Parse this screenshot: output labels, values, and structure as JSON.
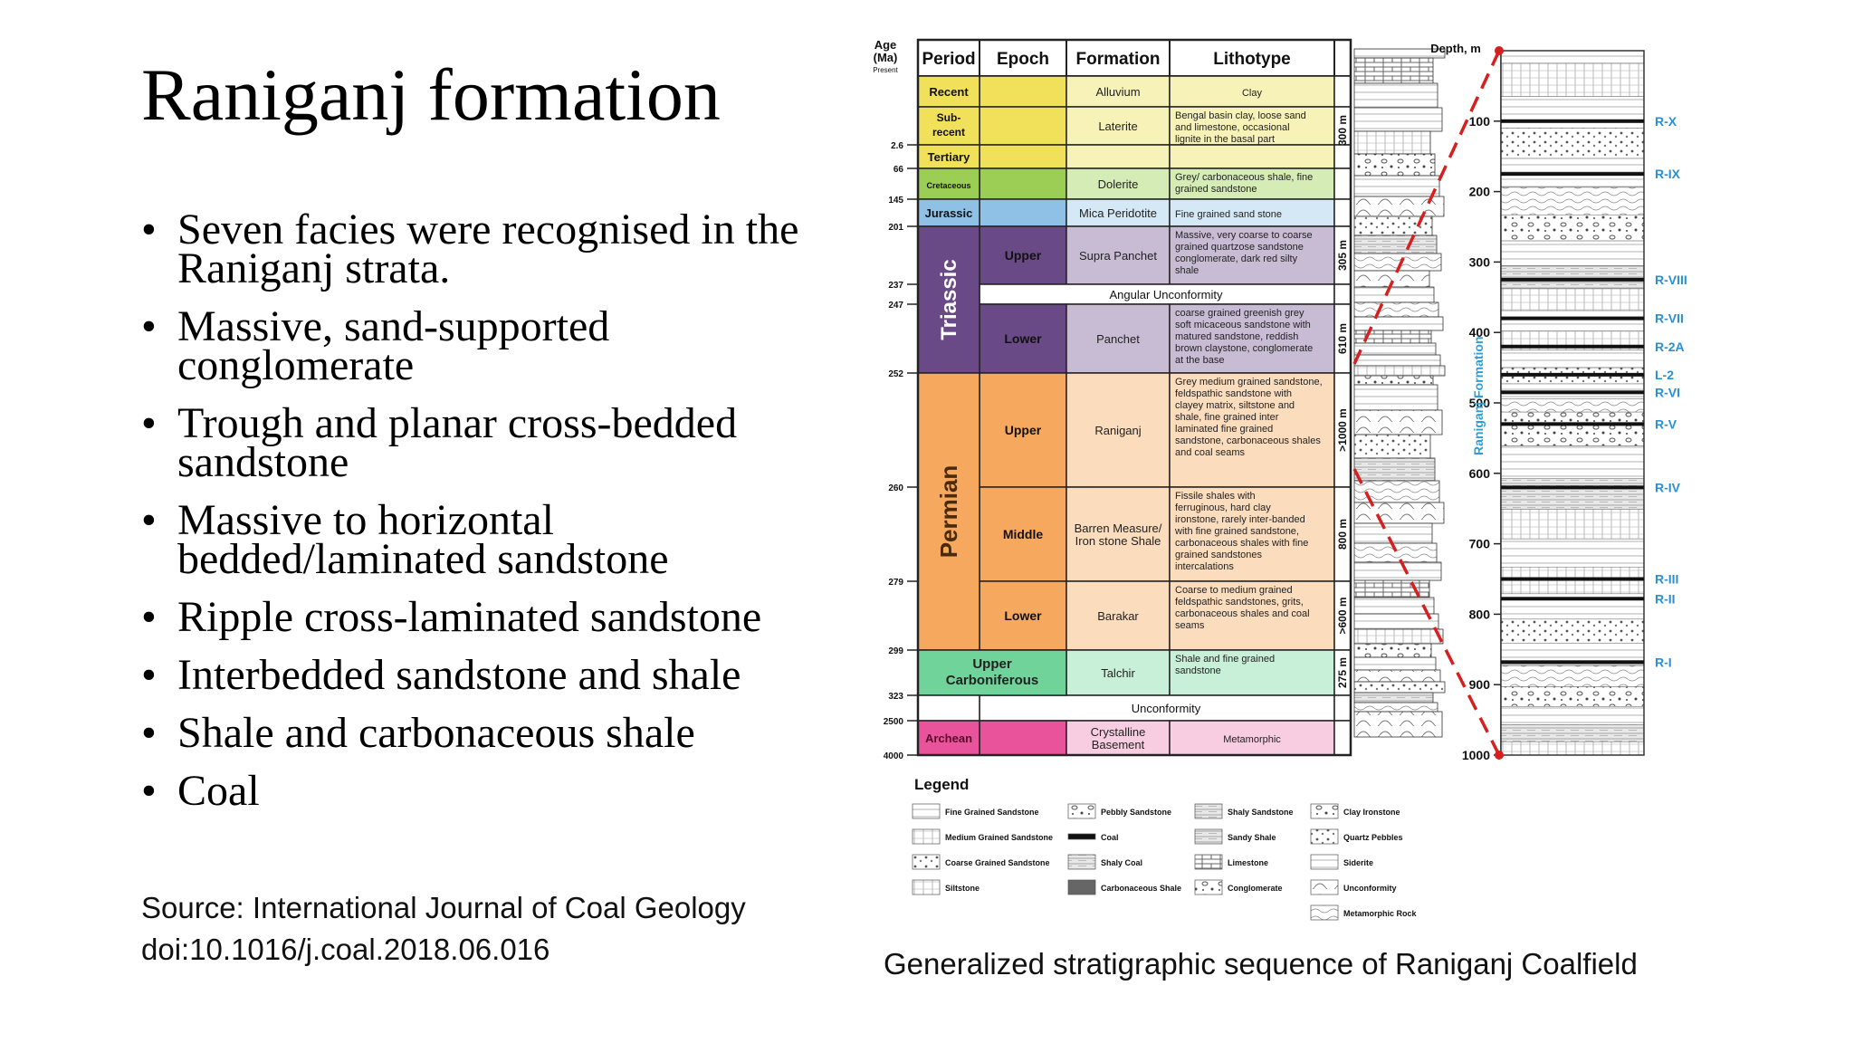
{
  "slide": {
    "title": "Raniganj formation",
    "bullets": [
      "Seven facies were recognised in the Raniganj strata.",
      "Massive, sand-supported conglomerate",
      "Trough and planar cross-bedded sandstone",
      "Massive to horizontal bedded/laminated sandstone",
      "Ripple cross-laminated sandstone",
      "Interbedded sandstone and shale",
      "Shale and carbonaceous shale",
      "Coal"
    ],
    "source_line1": "Source: International Journal of Coal Geology",
    "source_line2": "doi:10.1016/j.coal.2018.06.016",
    "caption": "Generalized stratigraphic sequence of Raniganj Coalfield"
  },
  "figure": {
    "headers": {
      "age": "Age (Ma)",
      "present": "Present",
      "period": "Period",
      "epoch": "Epoch",
      "formation": "Formation",
      "lithotype": "Lithotype",
      "depth": "Depth, m",
      "raniganj_formation": "Raniganj Formation"
    },
    "ages": [
      {
        "label": "2.6",
        "row": 2
      },
      {
        "label": "66",
        "row": 3
      },
      {
        "label": "145",
        "row": 4
      },
      {
        "label": "201",
        "row": 5
      },
      {
        "label": "237",
        "row": 6
      },
      {
        "label": "247",
        "row": 7
      },
      {
        "label": "252",
        "row": 8
      },
      {
        "label": "260",
        "row": 9
      },
      {
        "label": "279",
        "row": 10
      },
      {
        "label": "299",
        "row": 11
      },
      {
        "label": "323",
        "row": 12
      },
      {
        "label": "2500",
        "row": 13
      },
      {
        "label": "4000",
        "row": 14
      }
    ],
    "rows": [
      {
        "period": "Recent",
        "epoch": "",
        "formation": "Alluvium",
        "lithotype": "Clay",
        "color": "#f1e05a",
        "light": "#f7f2b8"
      },
      {
        "period": "Sub-recent",
        "epoch": "",
        "formation": "Laterite",
        "lithotype": "Bengal basin clay, loose sand and limestone, occasional lignite in the basal part",
        "color": "#f1e05a",
        "light": "#f7f2b8"
      },
      {
        "period": "Tertiary",
        "epoch": "",
        "formation": "",
        "lithotype": "",
        "color": "#f1e05a",
        "light": "#f7f2b8"
      },
      {
        "period": "Cretaceous",
        "epoch": "",
        "formation": "Dolerite",
        "lithotype": "Grey/ carbonaceous shale, fine grained sandstone",
        "color": "#9ccd55",
        "light": "#d6ecb7"
      },
      {
        "period": "Jurassic",
        "epoch": "",
        "formation": "Mica Peridotite",
        "lithotype": "Fine grained sand stone",
        "color": "#8fc1e7",
        "light": "#d4e8f6"
      },
      {
        "period": "Triassic",
        "epoch": "Upper",
        "formation": "Supra Panchet",
        "lithotype": "Massive, very coarse to coarse grained quartzose sandstone conglomerate, dark red silty shale",
        "color": "#6a4a86",
        "light": "#c8bcd4",
        "thickness": "305 m"
      },
      {
        "period": "",
        "epoch": "",
        "formation": "Angular Unconformity",
        "lithotype": "",
        "color": "#ffffff",
        "light": "#ffffff"
      },
      {
        "period": "",
        "epoch": "Lower",
        "formation": "Panchet",
        "lithotype": "coarse grained greenish grey soft micaceous sandstone with matured sandstone, reddish brown claystone, conglomerate at the base",
        "color": "#6a4a86",
        "light": "#c8bcd4",
        "thickness": "610 m"
      },
      {
        "period": "Permian",
        "epoch": "Upper",
        "formation": "Raniganj",
        "lithotype": "Grey medium grained sandstone, feldspathic sandstone with clayey matrix, siltstone and shale, fine grained inter laminated fine grained sandstone, carbonaceous shales and coal seams",
        "color": "#f7a85f",
        "light": "#fbdcbd",
        "thickness": ">1000 m"
      },
      {
        "period": "",
        "epoch": "Middle",
        "formation": "Barren Measure/ Iron stone Shale",
        "lithotype": "Fissile shales with ferruginous, hard clay ironstone, rarely inter-banded with fine grained sandstone, carbonaceous shales with fine grained sandstones intercalations",
        "color": "#f7a85f",
        "light": "#fbdcbd",
        "thickness": "800 m"
      },
      {
        "period": "",
        "epoch": "Lower",
        "formation": "Barakar",
        "lithotype": "Coarse to medium grained feldspathic sandstones, grits, carbonaceous shales and coal seams",
        "color": "#f7a85f",
        "light": "#fbdcbd",
        "thickness": ">600 m"
      },
      {
        "period": "Upper Carboniferous",
        "epoch": "",
        "formation": "Talchir",
        "lithotype": "Shale and fine grained sandstone",
        "color": "#6fd39a",
        "light": "#c8efd8",
        "thickness": "275 m"
      },
      {
        "period": "",
        "epoch": "",
        "formation": "Unconformity",
        "lithotype": "",
        "color": "#ffffff",
        "light": "#ffffff"
      },
      {
        "period": "Archean",
        "epoch": "",
        "formation": "Crystalline Basement",
        "lithotype": "Metamorphic",
        "color": "#e8539b",
        "light": "#f8cde2"
      }
    ],
    "top_thickness": "300 m",
    "depths": [
      "100",
      "200",
      "300",
      "400",
      "500",
      "600",
      "700",
      "800",
      "900",
      "1000"
    ],
    "seams": [
      {
        "label": "R-X",
        "depth": 100
      },
      {
        "label": "R-IX",
        "depth": 175
      },
      {
        "label": "R-VIII",
        "depth": 325
      },
      {
        "label": "R-VII",
        "depth": 380
      },
      {
        "label": "R-2A",
        "depth": 420
      },
      {
        "label": "L-2",
        "depth": 460
      },
      {
        "label": "R-VI",
        "depth": 485
      },
      {
        "label": "R-V",
        "depth": 530
      },
      {
        "label": "R-IV",
        "depth": 620
      },
      {
        "label": "R-III",
        "depth": 750
      },
      {
        "label": "R-II",
        "depth": 778
      },
      {
        "label": "R-I",
        "depth": 868
      }
    ],
    "legend_title": "Legend",
    "legend": [
      [
        "Fine Grained Sandstone",
        "Medium Grained Sandstone",
        "Coarse Grained Sandstone",
        "Siltstone"
      ],
      [
        "Pebbly Sandstone",
        "Coal",
        "Shaly Coal",
        "Carbonaceous Shale"
      ],
      [
        "Shaly Sandstone",
        "Sandy Shale",
        "Limestone",
        "Conglomerate"
      ],
      [
        "Clay Ironstone",
        "Quartz Pebbles",
        "Siderite",
        "Unconformity",
        "Metamorphic Rock"
      ]
    ],
    "colors": {
      "grid": "#222222",
      "red_dash": "#d62020",
      "seam_text": "#2a8fd4",
      "formation_label": "#2aa0d8"
    }
  }
}
